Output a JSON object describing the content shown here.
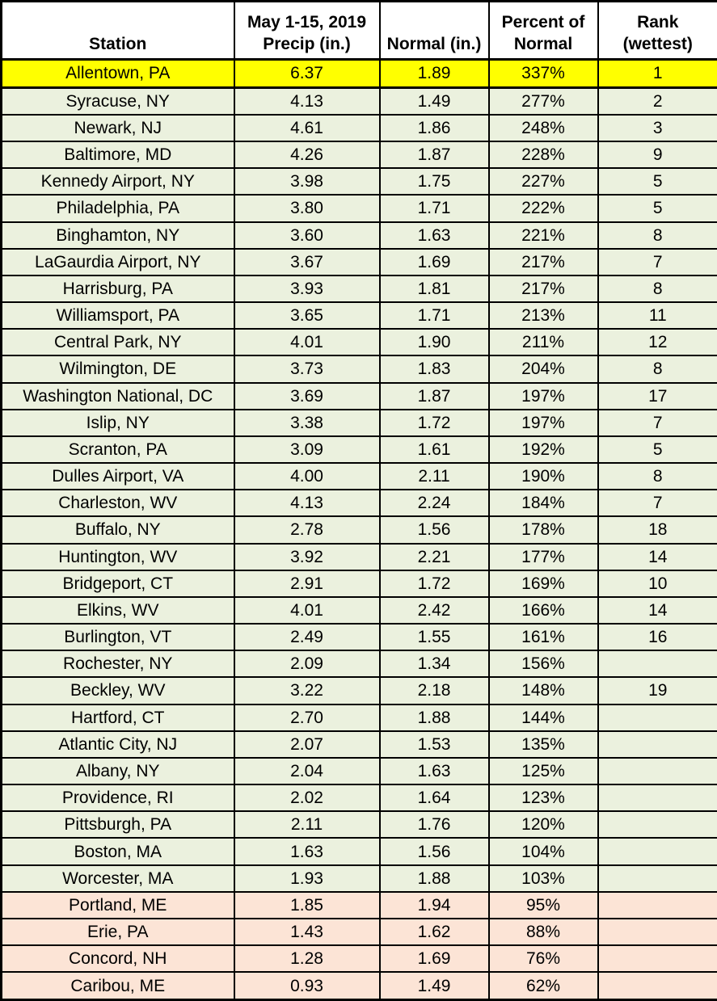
{
  "colors": {
    "yellow": "#ffff00",
    "green": "#ebf1de",
    "pink": "#fce4d6",
    "border": "#000000",
    "header_bg": "#ffffff"
  },
  "chart_data": {
    "type": "table",
    "columns": [
      "Station",
      "May 1-15, 2019\nPrecip (in.)",
      "Normal (in.)",
      "Percent of\nNormal",
      "Rank\n(wettest)"
    ],
    "rows": [
      {
        "station": "Allentown, PA",
        "precip": "6.37",
        "normal": "1.89",
        "percent_of_normal": "337%",
        "rank": "1",
        "highlight": "yellow"
      },
      {
        "station": "Syracuse, NY",
        "precip": "4.13",
        "normal": "1.49",
        "percent_of_normal": "277%",
        "rank": "2",
        "highlight": "green"
      },
      {
        "station": "Newark, NJ",
        "precip": "4.61",
        "normal": "1.86",
        "percent_of_normal": "248%",
        "rank": "3",
        "highlight": "green"
      },
      {
        "station": "Baltimore, MD",
        "precip": "4.26",
        "normal": "1.87",
        "percent_of_normal": "228%",
        "rank": "9",
        "highlight": "green"
      },
      {
        "station": "Kennedy Airport, NY",
        "precip": "3.98",
        "normal": "1.75",
        "percent_of_normal": "227%",
        "rank": "5",
        "highlight": "green"
      },
      {
        "station": "Philadelphia, PA",
        "precip": "3.80",
        "normal": "1.71",
        "percent_of_normal": "222%",
        "rank": "5",
        "highlight": "green"
      },
      {
        "station": "Binghamton, NY",
        "precip": "3.60",
        "normal": "1.63",
        "percent_of_normal": "221%",
        "rank": "8",
        "highlight": "green"
      },
      {
        "station": "LaGaurdia Airport, NY",
        "precip": "3.67",
        "normal": "1.69",
        "percent_of_normal": "217%",
        "rank": "7",
        "highlight": "green"
      },
      {
        "station": "Harrisburg, PA",
        "precip": "3.93",
        "normal": "1.81",
        "percent_of_normal": "217%",
        "rank": "8",
        "highlight": "green"
      },
      {
        "station": "Williamsport, PA",
        "precip": "3.65",
        "normal": "1.71",
        "percent_of_normal": "213%",
        "rank": "11",
        "highlight": "green"
      },
      {
        "station": "Central Park, NY",
        "precip": "4.01",
        "normal": "1.90",
        "percent_of_normal": "211%",
        "rank": "12",
        "highlight": "green"
      },
      {
        "station": "Wilmington, DE",
        "precip": "3.73",
        "normal": "1.83",
        "percent_of_normal": "204%",
        "rank": "8",
        "highlight": "green"
      },
      {
        "station": "Washington National, DC",
        "precip": "3.69",
        "normal": "1.87",
        "percent_of_normal": "197%",
        "rank": "17",
        "highlight": "green"
      },
      {
        "station": "Islip, NY",
        "precip": "3.38",
        "normal": "1.72",
        "percent_of_normal": "197%",
        "rank": "7",
        "highlight": "green"
      },
      {
        "station": "Scranton, PA",
        "precip": "3.09",
        "normal": "1.61",
        "percent_of_normal": "192%",
        "rank": "5",
        "highlight": "green"
      },
      {
        "station": "Dulles Airport, VA",
        "precip": "4.00",
        "normal": "2.11",
        "percent_of_normal": "190%",
        "rank": "8",
        "highlight": "green"
      },
      {
        "station": "Charleston, WV",
        "precip": "4.13",
        "normal": "2.24",
        "percent_of_normal": "184%",
        "rank": "7",
        "highlight": "green"
      },
      {
        "station": "Buffalo, NY",
        "precip": "2.78",
        "normal": "1.56",
        "percent_of_normal": "178%",
        "rank": "18",
        "highlight": "green"
      },
      {
        "station": "Huntington, WV",
        "precip": "3.92",
        "normal": "2.21",
        "percent_of_normal": "177%",
        "rank": "14",
        "highlight": "green"
      },
      {
        "station": "Bridgeport, CT",
        "precip": "2.91",
        "normal": "1.72",
        "percent_of_normal": "169%",
        "rank": "10",
        "highlight": "green"
      },
      {
        "station": "Elkins, WV",
        "precip": "4.01",
        "normal": "2.42",
        "percent_of_normal": "166%",
        "rank": "14",
        "highlight": "green"
      },
      {
        "station": "Burlington, VT",
        "precip": "2.49",
        "normal": "1.55",
        "percent_of_normal": "161%",
        "rank": "16",
        "highlight": "green"
      },
      {
        "station": "Rochester, NY",
        "precip": "2.09",
        "normal": "1.34",
        "percent_of_normal": "156%",
        "rank": "",
        "highlight": "green"
      },
      {
        "station": "Beckley, WV",
        "precip": "3.22",
        "normal": "2.18",
        "percent_of_normal": "148%",
        "rank": "19",
        "highlight": "green"
      },
      {
        "station": "Hartford, CT",
        "precip": "2.70",
        "normal": "1.88",
        "percent_of_normal": "144%",
        "rank": "",
        "highlight": "green"
      },
      {
        "station": "Atlantic City, NJ",
        "precip": "2.07",
        "normal": "1.53",
        "percent_of_normal": "135%",
        "rank": "",
        "highlight": "green"
      },
      {
        "station": "Albany, NY",
        "precip": "2.04",
        "normal": "1.63",
        "percent_of_normal": "125%",
        "rank": "",
        "highlight": "green"
      },
      {
        "station": "Providence, RI",
        "precip": "2.02",
        "normal": "1.64",
        "percent_of_normal": "123%",
        "rank": "",
        "highlight": "green"
      },
      {
        "station": "Pittsburgh, PA",
        "precip": "2.11",
        "normal": "1.76",
        "percent_of_normal": "120%",
        "rank": "",
        "highlight": "green"
      },
      {
        "station": "Boston, MA",
        "precip": "1.63",
        "normal": "1.56",
        "percent_of_normal": "104%",
        "rank": "",
        "highlight": "green"
      },
      {
        "station": "Worcester, MA",
        "precip": "1.93",
        "normal": "1.88",
        "percent_of_normal": "103%",
        "rank": "",
        "highlight": "green"
      },
      {
        "station": "Portland, ME",
        "precip": "1.85",
        "normal": "1.94",
        "percent_of_normal": "95%",
        "rank": "",
        "highlight": "pink"
      },
      {
        "station": "Erie, PA",
        "precip": "1.43",
        "normal": "1.62",
        "percent_of_normal": "88%",
        "rank": "",
        "highlight": "pink"
      },
      {
        "station": "Concord, NH",
        "precip": "1.28",
        "normal": "1.69",
        "percent_of_normal": "76%",
        "rank": "",
        "highlight": "pink"
      },
      {
        "station": "Caribou, ME",
        "precip": "0.93",
        "normal": "1.49",
        "percent_of_normal": "62%",
        "rank": "",
        "highlight": "pink"
      }
    ]
  }
}
